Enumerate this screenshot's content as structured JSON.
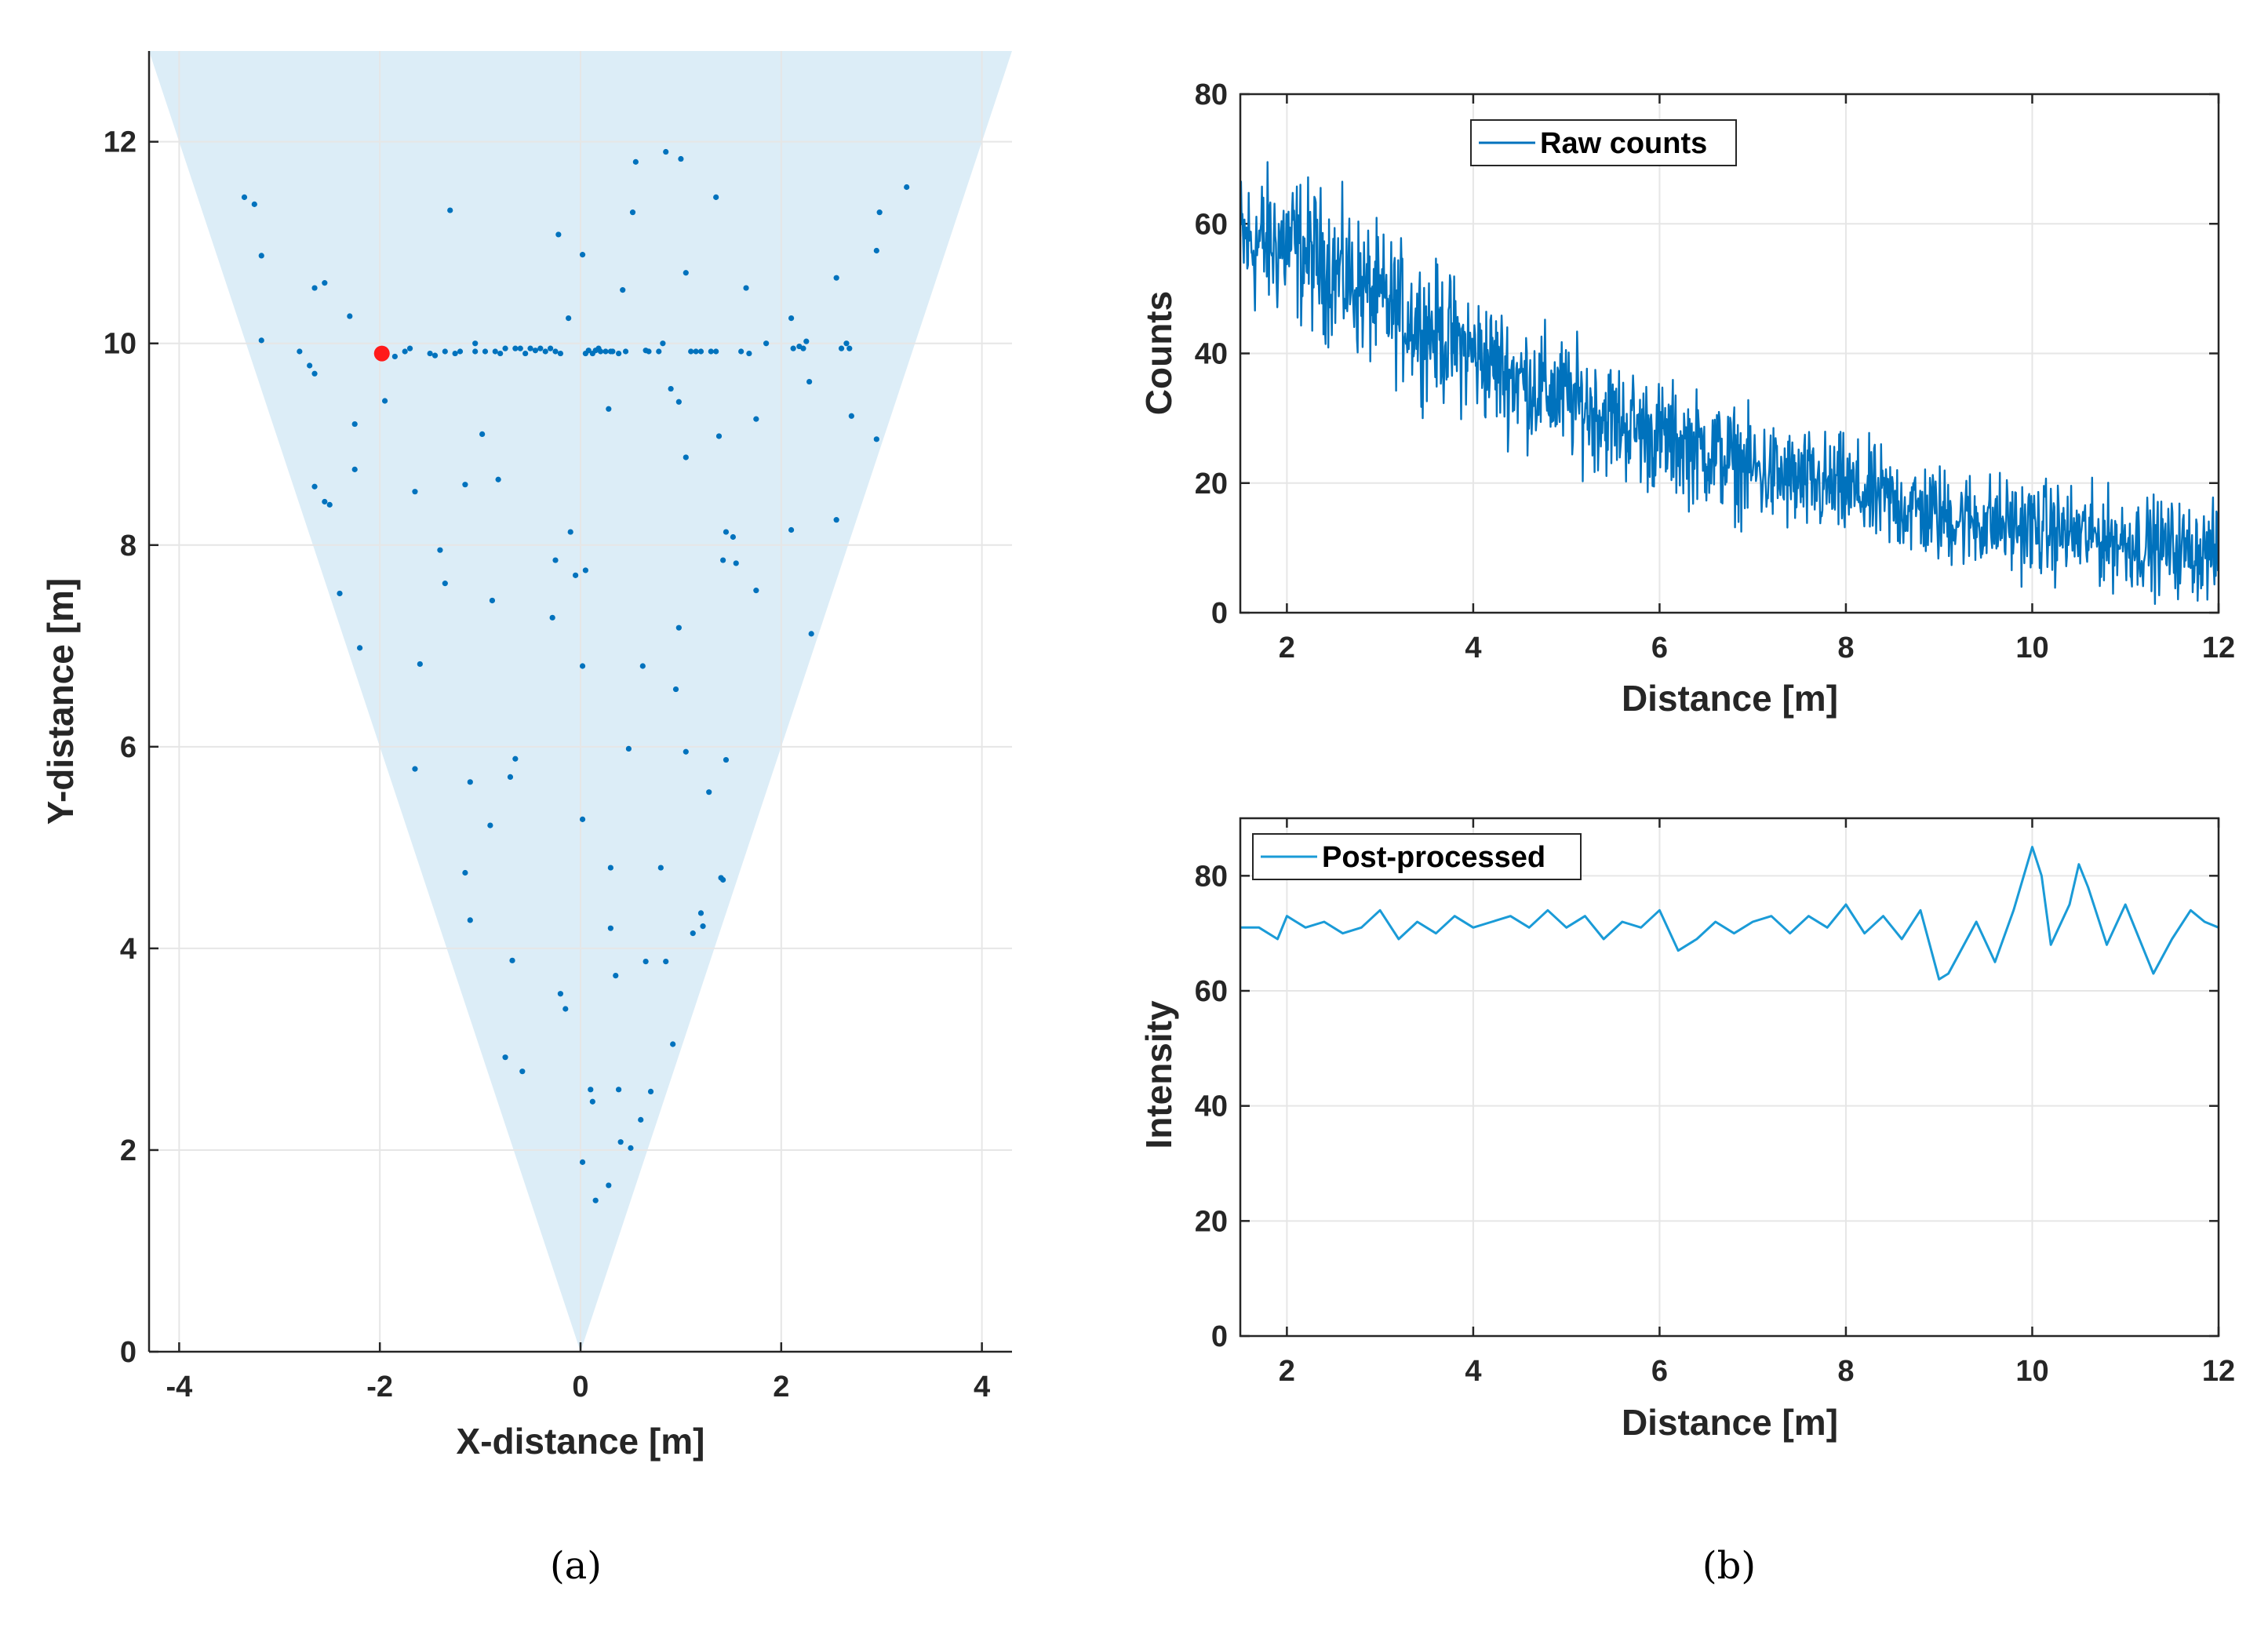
{
  "colors": {
    "series": "#0072bd",
    "series_light": "#1a9bd7",
    "highlight": "#ff1a1a",
    "fov": "#dcedf7",
    "grid": "#e6e6e6",
    "axis": "#262626"
  },
  "chart_data": [
    {
      "id": "a",
      "type": "scatter",
      "caption": "(a)",
      "xlabel": "X-distance [m]",
      "ylabel": "Y-distance [m]",
      "xlim": [
        -4.3,
        4.3
      ],
      "ylim": [
        0,
        12.9
      ],
      "xticks": [
        "-4",
        "-2",
        "0",
        "2",
        "4"
      ],
      "xtick_values": [
        -4,
        -2,
        0,
        2,
        4
      ],
      "yticks": [
        "0",
        "2",
        "4",
        "6",
        "8",
        "10",
        "12"
      ],
      "ytick_values": [
        0,
        2,
        4,
        6,
        8,
        10,
        12
      ],
      "grid": true,
      "field_of_view": [
        [
          0,
          0
        ],
        [
          -4.3,
          12.9
        ],
        [
          4.3,
          12.9
        ]
      ],
      "highlight_point": [
        -1.98,
        9.9
      ],
      "points": [
        [
          -3.35,
          11.45
        ],
        [
          -3.25,
          11.38
        ],
        [
          -3.18,
          10.87
        ],
        [
          -3.18,
          10.03
        ],
        [
          -2.8,
          9.92
        ],
        [
          -2.7,
          9.78
        ],
        [
          -2.65,
          9.7
        ],
        [
          -2.65,
          10.55
        ],
        [
          -2.55,
          10.6
        ],
        [
          -2.3,
          10.27
        ],
        [
          -2.25,
          9.2
        ],
        [
          -2.25,
          8.75
        ],
        [
          -2.65,
          8.58
        ],
        [
          -2.55,
          8.43
        ],
        [
          -2.5,
          8.4
        ],
        [
          -2.4,
          7.52
        ],
        [
          -2.2,
          6.98
        ],
        [
          -1.95,
          9.43
        ],
        [
          -1.85,
          9.87
        ],
        [
          -1.75,
          9.92
        ],
        [
          -1.7,
          9.95
        ],
        [
          -1.65,
          8.53
        ],
        [
          -1.65,
          5.78
        ],
        [
          -1.6,
          6.82
        ],
        [
          -1.5,
          9.9
        ],
        [
          -1.45,
          9.88
        ],
        [
          -1.4,
          7.95
        ],
        [
          -1.35,
          7.62
        ],
        [
          -1.35,
          9.92
        ],
        [
          -1.3,
          11.32
        ],
        [
          -1.25,
          9.9
        ],
        [
          -1.2,
          9.92
        ],
        [
          -1.15,
          4.75
        ],
        [
          -1.15,
          8.6
        ],
        [
          -1.1,
          4.28
        ],
        [
          -1.1,
          5.65
        ],
        [
          -1.05,
          9.92
        ],
        [
          -1.05,
          10.0
        ],
        [
          -0.98,
          9.1
        ],
        [
          -0.95,
          9.92
        ],
        [
          -0.9,
          5.22
        ],
        [
          -0.88,
          7.45
        ],
        [
          -0.85,
          9.92
        ],
        [
          -0.82,
          8.65
        ],
        [
          -0.8,
          9.9
        ],
        [
          -0.75,
          9.95
        ],
        [
          -0.75,
          2.92
        ],
        [
          -0.7,
          5.7
        ],
        [
          -0.68,
          3.88
        ],
        [
          -0.65,
          9.95
        ],
        [
          -0.65,
          5.88
        ],
        [
          -0.6,
          9.95
        ],
        [
          -0.58,
          2.78
        ],
        [
          -0.55,
          9.9
        ],
        [
          -0.5,
          9.95
        ],
        [
          -0.45,
          9.93
        ],
        [
          -0.4,
          9.95
        ],
        [
          -0.35,
          9.92
        ],
        [
          -0.3,
          9.95
        ],
        [
          -0.28,
          7.28
        ],
        [
          -0.25,
          9.92
        ],
        [
          -0.25,
          7.85
        ],
        [
          -0.22,
          11.08
        ],
        [
          -0.2,
          9.9
        ],
        [
          -0.2,
          3.55
        ],
        [
          -0.15,
          3.4
        ],
        [
          -0.12,
          10.25
        ],
        [
          -0.1,
          8.13
        ],
        [
          -0.05,
          7.7
        ],
        [
          0.02,
          10.88
        ],
        [
          0.02,
          6.8
        ],
        [
          0.02,
          5.28
        ],
        [
          0.02,
          1.88
        ],
        [
          0.05,
          9.9
        ],
        [
          0.05,
          7.75
        ],
        [
          0.08,
          9.93
        ],
        [
          0.1,
          2.6
        ],
        [
          0.12,
          2.48
        ],
        [
          0.12,
          9.9
        ],
        [
          0.15,
          9.93
        ],
        [
          0.15,
          1.5
        ],
        [
          0.18,
          9.95
        ],
        [
          0.2,
          9.92
        ],
        [
          0.25,
          9.92
        ],
        [
          0.28,
          1.65
        ],
        [
          0.28,
          9.35
        ],
        [
          0.3,
          9.92
        ],
        [
          0.3,
          4.2
        ],
        [
          0.3,
          4.8
        ],
        [
          0.32,
          9.92
        ],
        [
          0.35,
          3.73
        ],
        [
          0.38,
          9.9
        ],
        [
          0.38,
          2.6
        ],
        [
          0.4,
          2.08
        ],
        [
          0.42,
          10.53
        ],
        [
          0.45,
          9.92
        ],
        [
          0.48,
          5.98
        ],
        [
          0.5,
          2.02
        ],
        [
          0.52,
          11.3
        ],
        [
          0.55,
          11.8
        ],
        [
          0.6,
          2.3
        ],
        [
          0.62,
          6.8
        ],
        [
          0.65,
          3.87
        ],
        [
          0.65,
          9.93
        ],
        [
          0.68,
          9.92
        ],
        [
          0.7,
          2.58
        ],
        [
          0.78,
          9.92
        ],
        [
          0.8,
          4.8
        ],
        [
          0.82,
          10.0
        ],
        [
          0.85,
          3.87
        ],
        [
          0.85,
          11.9
        ],
        [
          0.9,
          9.55
        ],
        [
          0.92,
          3.05
        ],
        [
          0.95,
          6.57
        ],
        [
          0.98,
          7.18
        ],
        [
          0.98,
          9.42
        ],
        [
          1.0,
          11.83
        ],
        [
          1.05,
          5.95
        ],
        [
          1.05,
          8.87
        ],
        [
          1.05,
          10.7
        ],
        [
          1.1,
          9.92
        ],
        [
          1.12,
          4.15
        ],
        [
          1.15,
          9.92
        ],
        [
          1.2,
          4.35
        ],
        [
          1.2,
          9.92
        ],
        [
          1.22,
          4.22
        ],
        [
          1.28,
          5.55
        ],
        [
          1.3,
          9.92
        ],
        [
          1.35,
          9.92
        ],
        [
          1.35,
          11.45
        ],
        [
          1.38,
          9.08
        ],
        [
          1.4,
          4.7
        ],
        [
          1.42,
          4.68
        ],
        [
          1.42,
          7.85
        ],
        [
          1.45,
          8.13
        ],
        [
          1.45,
          5.87
        ],
        [
          1.52,
          8.08
        ],
        [
          1.55,
          7.82
        ],
        [
          1.6,
          9.92
        ],
        [
          1.65,
          10.55
        ],
        [
          1.68,
          9.9
        ],
        [
          1.75,
          9.25
        ],
        [
          1.75,
          7.55
        ],
        [
          1.85,
          10.0
        ],
        [
          2.1,
          8.15
        ],
        [
          2.1,
          10.25
        ],
        [
          2.12,
          9.95
        ],
        [
          2.18,
          9.97
        ],
        [
          2.22,
          9.95
        ],
        [
          2.25,
          10.02
        ],
        [
          2.28,
          9.62
        ],
        [
          2.3,
          7.12
        ],
        [
          2.55,
          10.65
        ],
        [
          2.55,
          8.25
        ],
        [
          2.6,
          9.95
        ],
        [
          2.65,
          10.0
        ],
        [
          2.68,
          9.95
        ],
        [
          2.7,
          9.28
        ],
        [
          2.95,
          9.05
        ],
        [
          2.95,
          10.92
        ],
        [
          2.98,
          11.3
        ],
        [
          3.25,
          11.55
        ]
      ]
    },
    {
      "id": "b1",
      "type": "line",
      "xlabel": "Distance [m]",
      "ylabel": "Counts",
      "xlim": [
        1.5,
        12
      ],
      "ylim": [
        0,
        80
      ],
      "xticks": [
        "2",
        "4",
        "6",
        "8",
        "10",
        "12"
      ],
      "xtick_values": [
        2,
        4,
        6,
        8,
        10,
        12
      ],
      "yticks": [
        "0",
        "20",
        "40",
        "60",
        "80"
      ],
      "ytick_values": [
        0,
        20,
        40,
        60,
        80
      ],
      "grid": true,
      "legend_position": "top-left",
      "series": [
        {
          "name": "Raw counts",
          "x": [
            1.5,
            2,
            2.5,
            3,
            3.5,
            4,
            4.5,
            5,
            5.5,
            6,
            6.5,
            7,
            7.5,
            8,
            8.5,
            9,
            9.5,
            10,
            10.5,
            11,
            11.5,
            12
          ],
          "values": [
            57,
            57,
            53,
            48,
            44,
            40,
            36,
            33,
            30,
            27,
            25,
            22,
            20,
            19,
            17,
            15,
            14,
            13,
            12,
            11,
            10,
            9
          ],
          "noise_amplitude": 8
        }
      ]
    },
    {
      "id": "b2",
      "type": "line",
      "caption": "(b)",
      "xlabel": "Distance [m]",
      "ylabel": "Intensity",
      "xlim": [
        1.5,
        12
      ],
      "ylim": [
        0,
        90
      ],
      "xticks": [
        "2",
        "4",
        "6",
        "8",
        "10",
        "12"
      ],
      "xtick_values": [
        2,
        4,
        6,
        8,
        10,
        12
      ],
      "yticks": [
        "0",
        "20",
        "40",
        "60",
        "80"
      ],
      "ytick_values": [
        0,
        20,
        40,
        60,
        80
      ],
      "grid": true,
      "legend_position": "top-left",
      "series": [
        {
          "name": "Post-processed",
          "x": [
            1.5,
            1.7,
            1.9,
            2.0,
            2.2,
            2.4,
            2.6,
            2.8,
            3.0,
            3.2,
            3.4,
            3.6,
            3.8,
            4.0,
            4.2,
            4.4,
            4.6,
            4.8,
            5.0,
            5.2,
            5.4,
            5.6,
            5.8,
            6.0,
            6.2,
            6.4,
            6.6,
            6.8,
            7.0,
            7.2,
            7.4,
            7.6,
            7.8,
            8.0,
            8.2,
            8.4,
            8.6,
            8.8,
            9.0,
            9.1,
            9.2,
            9.4,
            9.6,
            9.8,
            10.0,
            10.1,
            10.2,
            10.4,
            10.5,
            10.6,
            10.8,
            11.0,
            11.2,
            11.3,
            11.5,
            11.7,
            11.85,
            12.0
          ],
          "values": [
            71,
            71,
            69,
            73,
            71,
            72,
            70,
            71,
            74,
            69,
            72,
            70,
            73,
            71,
            72,
            73,
            71,
            74,
            71,
            73,
            69,
            72,
            71,
            74,
            67,
            69,
            72,
            70,
            72,
            73,
            70,
            73,
            71,
            75,
            70,
            73,
            69,
            74,
            62,
            63,
            66,
            72,
            65,
            74,
            85,
            80,
            68,
            75,
            82,
            78,
            68,
            75,
            67,
            63,
            69,
            74,
            72,
            71
          ]
        }
      ]
    }
  ]
}
